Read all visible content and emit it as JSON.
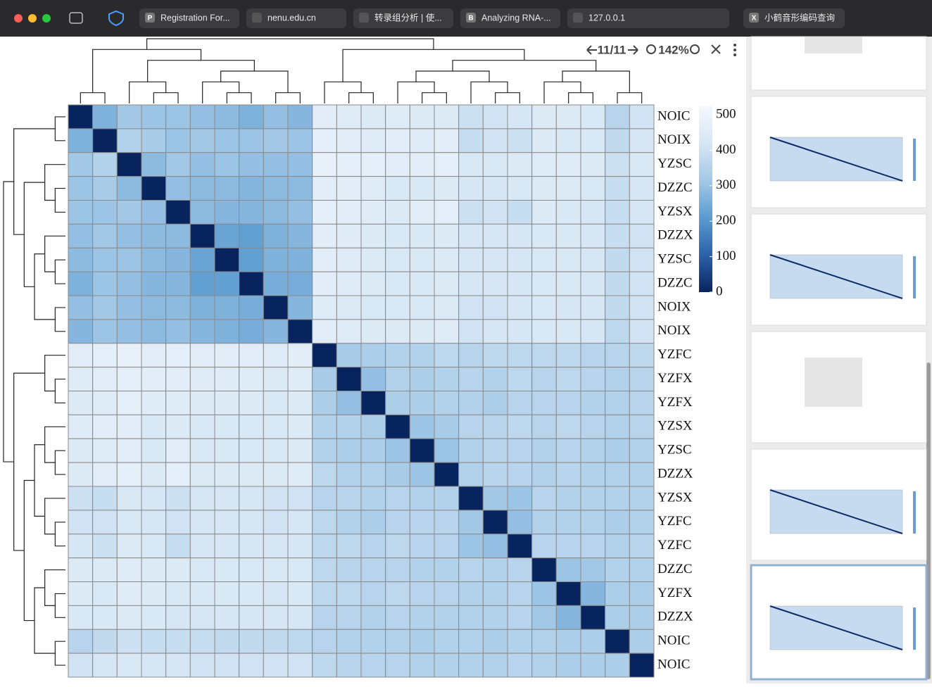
{
  "browser": {
    "tabs": [
      {
        "icon": "P",
        "title": "Registration For..."
      },
      {
        "title": "nenu.edu.cn"
      },
      {
        "title": "转录组分析 | 使..."
      },
      {
        "icon": "B",
        "title": "Analyzing RNA-..."
      },
      {
        "title": "127.0.0.1"
      },
      {
        "icon": "X",
        "title": "小鹤音形编码查询"
      }
    ]
  },
  "viewer": {
    "page": "11/11",
    "zoom": "142%"
  },
  "chart_data": {
    "type": "heatmap",
    "rows": [
      "NOIC",
      "NOIX",
      "YZSC",
      "DZZC",
      "YZSX",
      "DZZX",
      "YZSC",
      "DZZC",
      "NOIX",
      "NOIX",
      "YZFC",
      "YZFX",
      "YZFX",
      "YZSX",
      "YZSC",
      "DZZX",
      "YZSX",
      "YZFC",
      "YZFC",
      "DZZC",
      "YZFX",
      "DZZX",
      "NOIC",
      "NOIC"
    ],
    "values": [
      [
        0,
        250,
        300,
        290,
        290,
        280,
        270,
        250,
        280,
        260,
        440,
        430,
        420,
        430,
        420,
        420,
        380,
        390,
        400,
        420,
        420,
        410,
        340,
        390
      ],
      [
        250,
        0,
        330,
        310,
        290,
        300,
        290,
        290,
        300,
        290,
        450,
        440,
        430,
        440,
        430,
        440,
        370,
        390,
        380,
        420,
        410,
        410,
        360,
        400
      ],
      [
        300,
        330,
        0,
        270,
        300,
        280,
        290,
        280,
        280,
        280,
        460,
        450,
        450,
        440,
        440,
        450,
        410,
        410,
        420,
        430,
        430,
        420,
        380,
        410
      ],
      [
        290,
        310,
        270,
        0,
        280,
        270,
        270,
        260,
        270,
        270,
        440,
        440,
        430,
        410,
        410,
        420,
        400,
        400,
        410,
        420,
        420,
        410,
        370,
        400
      ],
      [
        290,
        290,
        300,
        280,
        0,
        270,
        260,
        260,
        270,
        280,
        450,
        440,
        430,
        420,
        440,
        450,
        380,
        390,
        370,
        420,
        410,
        400,
        370,
        400
      ],
      [
        280,
        300,
        280,
        270,
        270,
        0,
        220,
        210,
        250,
        260,
        440,
        430,
        420,
        410,
        410,
        420,
        400,
        400,
        400,
        410,
        410,
        400,
        370,
        390
      ],
      [
        270,
        290,
        290,
        270,
        260,
        220,
        0,
        210,
        250,
        250,
        440,
        430,
        420,
        410,
        410,
        420,
        400,
        400,
        400,
        410,
        410,
        400,
        360,
        390
      ],
      [
        250,
        290,
        280,
        260,
        260,
        210,
        210,
        0,
        240,
        240,
        440,
        430,
        420,
        410,
        410,
        420,
        400,
        400,
        400,
        410,
        410,
        400,
        360,
        390
      ],
      [
        280,
        300,
        280,
        270,
        270,
        250,
        250,
        240,
        0,
        260,
        430,
        420,
        410,
        410,
        410,
        420,
        390,
        390,
        400,
        410,
        400,
        400,
        360,
        390
      ],
      [
        260,
        290,
        280,
        270,
        280,
        260,
        250,
        240,
        260,
        0,
        440,
        430,
        420,
        420,
        420,
        430,
        390,
        400,
        400,
        410,
        410,
        400,
        350,
        390
      ],
      [
        440,
        450,
        460,
        440,
        450,
        440,
        440,
        440,
        430,
        440,
        0,
        310,
        320,
        330,
        330,
        350,
        340,
        350,
        350,
        350,
        350,
        340,
        340,
        350
      ],
      [
        430,
        440,
        450,
        440,
        440,
        430,
        430,
        430,
        420,
        430,
        310,
        0,
        280,
        330,
        320,
        330,
        340,
        330,
        350,
        340,
        350,
        340,
        330,
        340
      ],
      [
        420,
        430,
        450,
        430,
        430,
        420,
        420,
        420,
        410,
        420,
        320,
        280,
        0,
        320,
        320,
        330,
        330,
        320,
        340,
        340,
        340,
        330,
        330,
        340
      ],
      [
        430,
        440,
        440,
        410,
        420,
        410,
        410,
        410,
        410,
        420,
        330,
        330,
        320,
        0,
        290,
        310,
        340,
        340,
        350,
        340,
        350,
        340,
        330,
        340
      ],
      [
        420,
        430,
        440,
        410,
        440,
        410,
        410,
        410,
        410,
        420,
        330,
        320,
        320,
        290,
        0,
        290,
        330,
        340,
        340,
        330,
        340,
        330,
        320,
        330
      ],
      [
        420,
        440,
        450,
        420,
        450,
        420,
        420,
        420,
        420,
        430,
        350,
        330,
        330,
        310,
        290,
        0,
        330,
        340,
        340,
        330,
        340,
        330,
        330,
        330
      ],
      [
        380,
        370,
        410,
        400,
        380,
        400,
        400,
        400,
        390,
        390,
        340,
        340,
        330,
        340,
        330,
        330,
        0,
        300,
        290,
        340,
        330,
        330,
        330,
        330
      ],
      [
        390,
        390,
        410,
        400,
        390,
        400,
        400,
        400,
        390,
        400,
        350,
        330,
        320,
        340,
        340,
        340,
        300,
        0,
        280,
        330,
        330,
        330,
        320,
        330
      ],
      [
        400,
        380,
        420,
        410,
        370,
        400,
        400,
        400,
        400,
        400,
        350,
        350,
        340,
        350,
        340,
        340,
        290,
        280,
        0,
        340,
        340,
        340,
        330,
        340
      ],
      [
        420,
        420,
        430,
        420,
        420,
        410,
        410,
        410,
        410,
        410,
        350,
        340,
        340,
        340,
        330,
        330,
        340,
        330,
        340,
        0,
        290,
        300,
        330,
        330
      ],
      [
        420,
        410,
        430,
        420,
        410,
        410,
        410,
        410,
        400,
        410,
        350,
        350,
        340,
        350,
        340,
        340,
        330,
        330,
        340,
        290,
        0,
        260,
        320,
        320
      ],
      [
        410,
        410,
        420,
        410,
        400,
        400,
        400,
        400,
        400,
        400,
        340,
        340,
        330,
        340,
        330,
        330,
        330,
        330,
        340,
        300,
        260,
        0,
        320,
        320
      ],
      [
        340,
        360,
        380,
        370,
        370,
        370,
        360,
        360,
        360,
        350,
        340,
        330,
        330,
        330,
        320,
        330,
        330,
        320,
        330,
        330,
        320,
        320,
        0,
        320
      ],
      [
        390,
        400,
        410,
        400,
        400,
        390,
        390,
        390,
        390,
        390,
        350,
        340,
        340,
        340,
        330,
        330,
        330,
        330,
        340,
        330,
        320,
        320,
        320,
        0
      ]
    ],
    "colorbar": {
      "lim": [
        0,
        500
      ],
      "ticks": [
        0,
        100,
        200,
        300,
        400,
        500
      ],
      "colors": [
        "#08245e",
        "#2b62ab",
        "#5b9bd0",
        "#a3c8e6",
        "#d6e6f4",
        "#f4f8fd"
      ]
    }
  }
}
